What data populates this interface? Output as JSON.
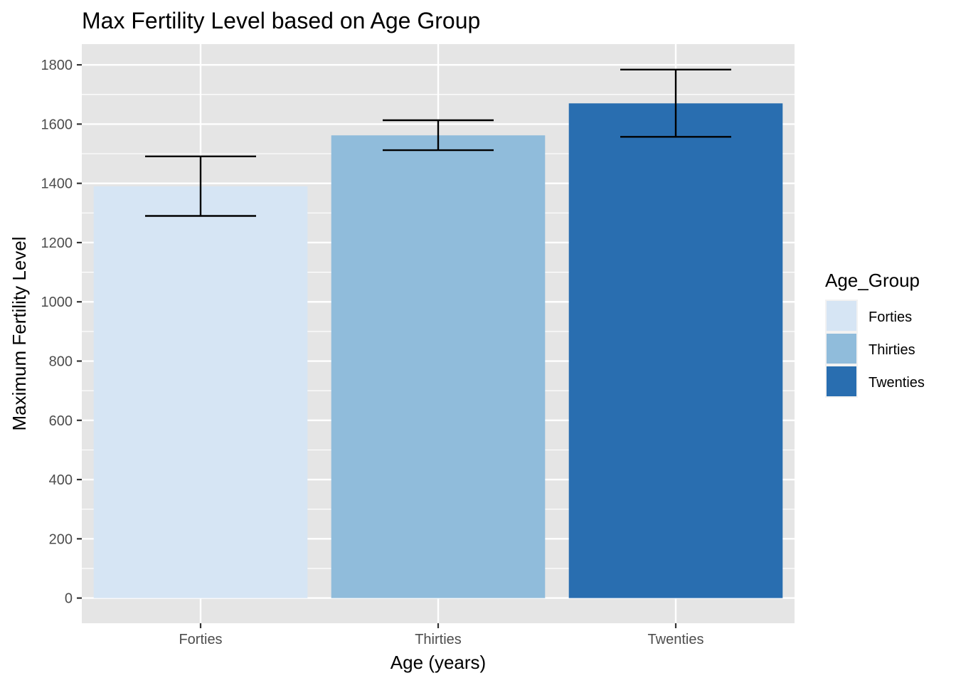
{
  "chart_data": {
    "type": "bar",
    "title": "Max Fertility Level based on Age Group",
    "xlabel": "Age (years)",
    "ylabel": "Maximum Fertility Level",
    "categories": [
      "Forties",
      "Thirties",
      "Twenties"
    ],
    "values": [
      1390,
      1562,
      1670
    ],
    "error_low": [
      1290,
      1512,
      1557
    ],
    "error_high": [
      1491,
      1613,
      1784
    ],
    "colors": [
      "#d6e5f4",
      "#90bcdb",
      "#296eb0"
    ],
    "ylim": [
      -85,
      1870
    ],
    "yticks": [
      0,
      200,
      400,
      600,
      800,
      1000,
      1200,
      1400,
      1600,
      1800
    ],
    "ytick_labels": [
      "0",
      "200",
      "400",
      "600",
      "800",
      "1000",
      "1200",
      "1400",
      "1600",
      "1800"
    ],
    "grid": true,
    "panel_background": "#e5e5e5",
    "legend": {
      "title": "Age_Group",
      "position": "right",
      "entries": [
        "Forties",
        "Thirties",
        "Twenties"
      ]
    }
  }
}
